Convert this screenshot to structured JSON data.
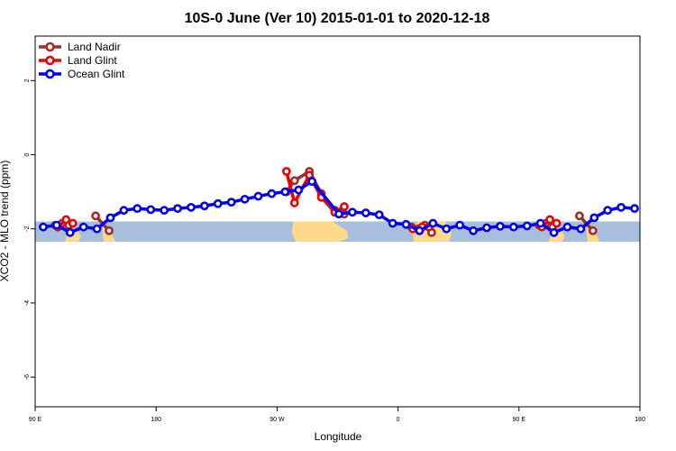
{
  "chart_data": {
    "type": "line",
    "title": "10S-0 June (Ver 10)   2015-01-01 to 2020-12-18",
    "xlabel": "Longitude",
    "ylabel": "XCO2 - MLO trend (ppm)",
    "xlim": [
      90,
      540
    ],
    "ylim": [
      -6.8,
      3.2
    ],
    "x_ticks": [
      {
        "value": 90,
        "label": "90 E"
      },
      {
        "value": 180,
        "label": "180"
      },
      {
        "value": 270,
        "label": "90 W"
      },
      {
        "value": 360,
        "label": "0"
      },
      {
        "value": 450,
        "label": "90 E"
      },
      {
        "value": 540,
        "label": "180"
      }
    ],
    "y_ticks": [
      {
        "value": 2,
        "label": "2"
      },
      {
        "value": 0,
        "label": "0"
      },
      {
        "value": -2,
        "label": "-2"
      },
      {
        "value": -4,
        "label": "-4"
      },
      {
        "value": -6,
        "label": "-6"
      }
    ],
    "legend_position": "top-left",
    "background_map": {
      "lat_range": "10S-0",
      "ocean_color": "#a7bfdc",
      "land_color": "#fdd98a",
      "y_band": [
        -2.35,
        -1.8
      ]
    },
    "series": [
      {
        "name": "Land Nadir",
        "color": "#a52a2a",
        "segments": [
          [
            [
              105,
              -1.9
            ],
            [
              110,
              -1.85
            ],
            [
              115,
              -1.9
            ]
          ],
          [
            [
              135,
              -1.65
            ],
            [
              145,
              -2.05
            ]
          ],
          [
            [
              277,
              -1.0
            ],
            [
              283,
              -0.7
            ],
            [
              294,
              -0.45
            ],
            [
              303,
              -1.05
            ],
            [
              313,
              -1.5
            ],
            [
              320,
              -1.6
            ]
          ],
          [
            [
              370,
              -1.95
            ],
            [
              375,
              -2.0
            ],
            [
              380,
              -1.9
            ],
            [
              385,
              -2.1
            ]
          ],
          [
            [
              465,
              -1.9
            ],
            [
              470,
              -1.85
            ],
            [
              475,
              -1.95
            ]
          ],
          [
            [
              495,
              -1.65
            ],
            [
              505,
              -2.05
            ]
          ]
        ]
      },
      {
        "name": "Land Glint",
        "color": "#ee0000",
        "segments": [
          [
            [
              107,
              -1.95
            ],
            [
              113,
              -1.75
            ],
            [
              118,
              -1.85
            ]
          ],
          [
            [
              277,
              -0.45
            ],
            [
              283,
              -1.3
            ],
            [
              294,
              -0.55
            ],
            [
              303,
              -1.15
            ],
            [
              313,
              -1.55
            ],
            [
              320,
              -1.4
            ]
          ],
          [
            [
              371,
              -2.0
            ],
            [
              378,
              -1.95
            ],
            [
              383,
              -1.95
            ]
          ],
          [
            [
              467,
              -1.95
            ],
            [
              473,
              -1.75
            ],
            [
              478,
              -1.85
            ]
          ]
        ]
      },
      {
        "name": "Ocean Glint",
        "color": "#0000ee",
        "segments": [
          [
            [
              96,
              -1.95
            ],
            [
              106,
              -1.9
            ],
            [
              116,
              -2.1
            ],
            [
              126,
              -1.95
            ],
            [
              136,
              -2.0
            ],
            [
              146,
              -1.7
            ],
            [
              156,
              -1.5
            ],
            [
              166,
              -1.45
            ],
            [
              176,
              -1.48
            ],
            [
              186,
              -1.5
            ],
            [
              196,
              -1.45
            ],
            [
              206,
              -1.42
            ],
            [
              216,
              -1.38
            ],
            [
              226,
              -1.32
            ],
            [
              236,
              -1.28
            ],
            [
              246,
              -1.2
            ],
            [
              256,
              -1.12
            ],
            [
              266,
              -1.05
            ],
            [
              276,
              -1.0
            ],
            [
              286,
              -0.95
            ],
            [
              296,
              -0.72
            ],
            [
              316,
              -1.6
            ],
            [
              326,
              -1.55
            ],
            [
              336,
              -1.57
            ],
            [
              346,
              -1.62
            ],
            [
              356,
              -1.85
            ],
            [
              366,
              -1.88
            ],
            [
              376,
              -2.05
            ],
            [
              386,
              -1.85
            ],
            [
              396,
              -2.0
            ],
            [
              406,
              -1.9
            ],
            [
              416,
              -2.05
            ],
            [
              426,
              -1.97
            ],
            [
              436,
              -1.93
            ],
            [
              446,
              -1.95
            ],
            [
              456,
              -1.92
            ],
            [
              466,
              -1.85
            ],
            [
              476,
              -2.1
            ],
            [
              486,
              -1.95
            ],
            [
              496,
              -2.0
            ],
            [
              506,
              -1.7
            ],
            [
              516,
              -1.5
            ],
            [
              526,
              -1.42
            ],
            [
              536,
              -1.45
            ]
          ]
        ]
      }
    ]
  }
}
